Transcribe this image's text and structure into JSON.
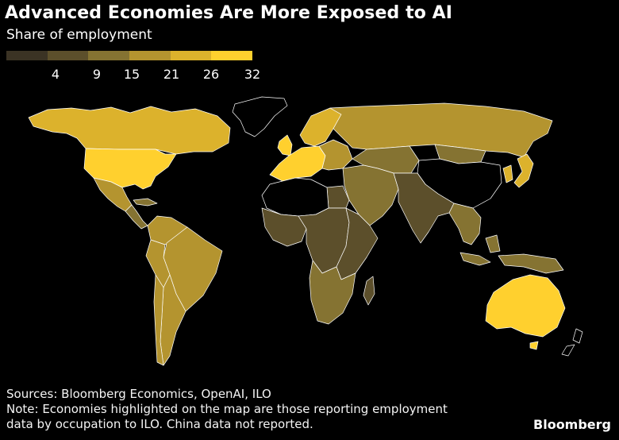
{
  "header": {
    "title": "Advanced Economies Are More Exposed to AI",
    "subtitle": "Share of employment"
  },
  "legend": {
    "colors": [
      "#3b3324",
      "#5c4f2b",
      "#857332",
      "#b4942f",
      "#dcb22c",
      "#ffd02e"
    ],
    "ticks": [
      "4",
      "9",
      "15",
      "21",
      "26",
      "32"
    ]
  },
  "map": {
    "background": "#000000",
    "no_data_fill": "#000000",
    "border_color": "#ffffff",
    "regions": [
      {
        "id": "canada-alaska",
        "class": 4
      },
      {
        "id": "usa",
        "class": 5
      },
      {
        "id": "mexico",
        "class": 3
      },
      {
        "id": "central-america",
        "class": 2
      },
      {
        "id": "caribbean",
        "class": 2
      },
      {
        "id": "colombia-venezuela",
        "class": 3
      },
      {
        "id": "brazil",
        "class": 3
      },
      {
        "id": "peru-bolivia",
        "class": 3
      },
      {
        "id": "chile",
        "class": 3
      },
      {
        "id": "argentina",
        "class": 3
      },
      {
        "id": "uk-ireland",
        "class": 5
      },
      {
        "id": "western-europe",
        "class": 5
      },
      {
        "id": "scandinavia",
        "class": 4
      },
      {
        "id": "eastern-europe",
        "class": 3
      },
      {
        "id": "russia",
        "class": 3
      },
      {
        "id": "middle-east",
        "class": 2
      },
      {
        "id": "egypt",
        "class": 1
      },
      {
        "id": "north-africa",
        "class": 0
      },
      {
        "id": "west-africa",
        "class": 1
      },
      {
        "id": "central-africa",
        "class": 1
      },
      {
        "id": "east-africa",
        "class": 1
      },
      {
        "id": "southern-africa",
        "class": 2
      },
      {
        "id": "madagascar",
        "class": 1
      },
      {
        "id": "central-asia",
        "class": 2
      },
      {
        "id": "south-asia",
        "class": 1
      },
      {
        "id": "china",
        "class": 0
      },
      {
        "id": "mongolia",
        "class": 2
      },
      {
        "id": "korea-japan",
        "class": 4
      },
      {
        "id": "southeast-asia",
        "class": 2
      },
      {
        "id": "indonesia",
        "class": 2
      },
      {
        "id": "australia",
        "class": 5
      },
      {
        "id": "new-zealand",
        "class": 0
      },
      {
        "id": "greenland",
        "class": 0
      }
    ]
  },
  "footer": {
    "sources": "Sources: Bloomberg Economics, OpenAI, ILO",
    "note_line1": "Note: Economies highlighted on the map are those reporting employment",
    "note_line2": "data by occupation to ILO. China data not reported.",
    "brand": "Bloomberg"
  }
}
